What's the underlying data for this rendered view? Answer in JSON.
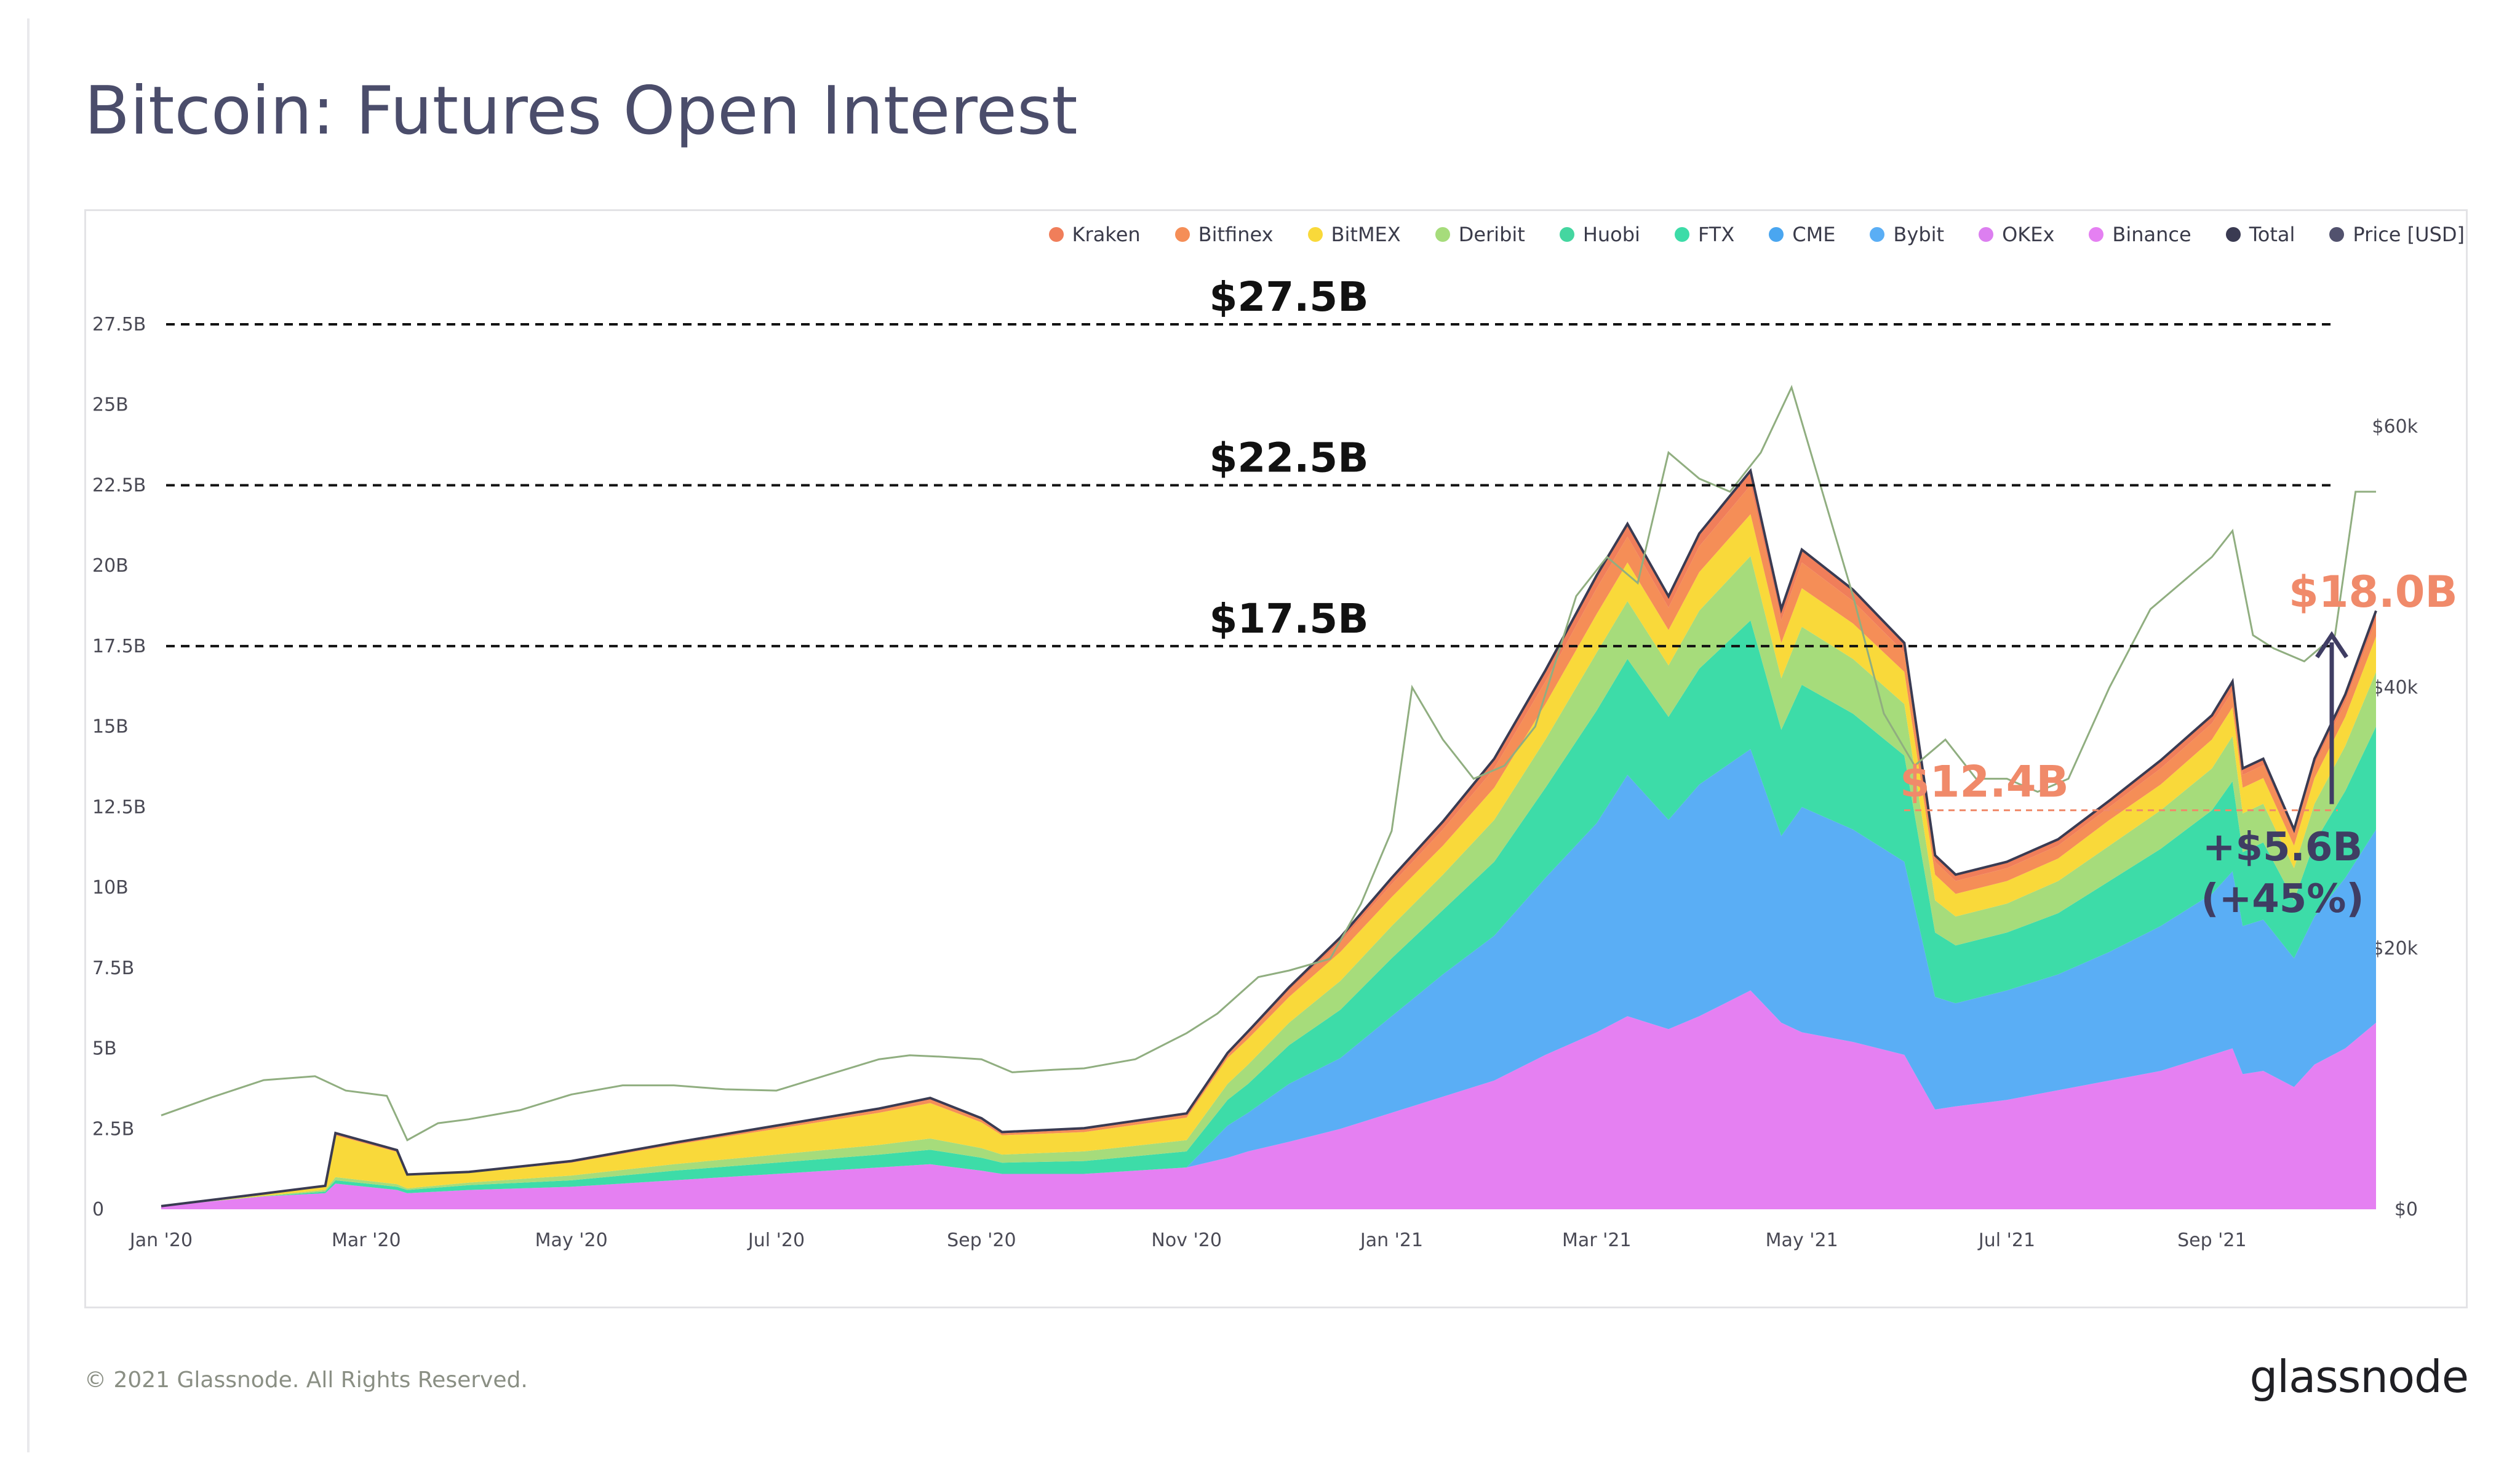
{
  "page": {
    "title": "Bitcoin: Futures Open Interest",
    "footer": "© 2021 Glassnode. All Rights Reserved.",
    "brand": "glassnode"
  },
  "legend": [
    {
      "label": "Kraken",
      "color": "#f07e5a"
    },
    {
      "label": "Bitfinex",
      "color": "#f58e57"
    },
    {
      "label": "BitMEX",
      "color": "#f9d93a"
    },
    {
      "label": "Deribit",
      "color": "#a6dc7b"
    },
    {
      "label": "Huobi",
      "color": "#44d6a0"
    },
    {
      "label": "FTX",
      "color": "#3ddca8"
    },
    {
      "label": "CME",
      "color": "#4aa6f0"
    },
    {
      "label": "Bybit",
      "color": "#5aaef5"
    },
    {
      "label": "OKEx",
      "color": "#dc7ff0"
    },
    {
      "label": "Binance",
      "color": "#e580f2"
    },
    {
      "label": "Total",
      "color": "#3a3b52"
    },
    {
      "label": "Price [USD]",
      "color": "#52526e"
    }
  ],
  "chart_data": {
    "type": "area",
    "stacked": true,
    "y_left": {
      "min": 0,
      "max": 27.5,
      "ticks": [
        {
          "v": 0,
          "label": "0"
        },
        {
          "v": 2.5,
          "label": "2.5B"
        },
        {
          "v": 5,
          "label": "5B"
        },
        {
          "v": 7.5,
          "label": "7.5B"
        },
        {
          "v": 10,
          "label": "10B"
        },
        {
          "v": 12.5,
          "label": "12.5B"
        },
        {
          "v": 15,
          "label": "15B"
        },
        {
          "v": 17.5,
          "label": "17.5B"
        },
        {
          "v": 20,
          "label": "20B"
        },
        {
          "v": 22.5,
          "label": "22.5B"
        },
        {
          "v": 25,
          "label": "25B"
        },
        {
          "v": 27.5,
          "label": "27.5B"
        }
      ]
    },
    "y_right": {
      "min": 0,
      "max": 65000,
      "ticks": [
        {
          "v": 0,
          "label": "$0"
        },
        {
          "v": 20000,
          "label": "$20k"
        },
        {
          "v": 40000,
          "label": "$40k"
        },
        {
          "v": 60000,
          "label": "$60k"
        }
      ]
    },
    "x_ticks": [
      {
        "m": 0,
        "label": "Jan '20"
      },
      {
        "m": 2,
        "label": "Mar '20"
      },
      {
        "m": 4,
        "label": "May '20"
      },
      {
        "m": 6,
        "label": "Jul '20"
      },
      {
        "m": 8,
        "label": "Sep '20"
      },
      {
        "m": 10,
        "label": "Nov '20"
      },
      {
        "m": 12,
        "label": "Jan '21"
      },
      {
        "m": 14,
        "label": "Mar '21"
      },
      {
        "m": 16,
        "label": "May '21"
      },
      {
        "m": 18,
        "label": "Jul '21"
      },
      {
        "m": 20,
        "label": "Sep '21"
      }
    ],
    "x_range_months": [
      0,
      21.6
    ],
    "stack_order_bottom_to_top": [
      "Binance",
      "CME",
      "FTX",
      "Deribit",
      "BitMEX",
      "Bitfinex",
      "Kraken"
    ],
    "series_colors": {
      "Binance": "#e580f2",
      "CME": "#5aaef5",
      "FTX": "#3ddca8",
      "Deribit": "#a6dc7b",
      "BitMEX": "#f9d93a",
      "Bitfinex": "#f58e57",
      "Kraken": "#f07e5a",
      "Total": "#3a3b52",
      "Price": "#90ae80"
    },
    "months": [
      0.0,
      1.0,
      1.6,
      1.7,
      2.3,
      2.4,
      3.0,
      4.0,
      5.0,
      6.0,
      7.0,
      7.5,
      8.0,
      8.2,
      9.0,
      10.0,
      10.4,
      10.6,
      11.0,
      11.5,
      12.0,
      12.5,
      13.0,
      13.5,
      14.0,
      14.3,
      14.7,
      15.0,
      15.5,
      15.8,
      16.0,
      16.5,
      17.0,
      17.3,
      17.5,
      18.0,
      18.5,
      19.0,
      19.5,
      20.0,
      20.2,
      20.3,
      20.5,
      20.8,
      21.0,
      21.3,
      21.6
    ],
    "series": [
      {
        "name": "Binance",
        "values": [
          0.1,
          0.4,
          0.5,
          0.8,
          0.6,
          0.5,
          0.6,
          0.7,
          0.9,
          1.1,
          1.3,
          1.4,
          1.2,
          1.1,
          1.1,
          1.3,
          1.6,
          1.8,
          2.1,
          2.5,
          3.0,
          3.5,
          4.0,
          4.8,
          5.5,
          6.0,
          5.6,
          6.0,
          6.8,
          5.8,
          5.5,
          5.2,
          4.8,
          3.1,
          3.2,
          3.4,
          3.7,
          4.0,
          4.3,
          4.8,
          5.0,
          4.2,
          4.3,
          3.8,
          4.5,
          5.0,
          5.8
        ]
      },
      {
        "name": "CME",
        "values": [
          0,
          0,
          0,
          0,
          0,
          0,
          0,
          0,
          0,
          0,
          0,
          0,
          0,
          0,
          0,
          0,
          1.0,
          1.2,
          1.8,
          2.2,
          3.0,
          3.8,
          4.5,
          5.5,
          6.5,
          7.5,
          6.5,
          7.2,
          7.5,
          5.8,
          7.0,
          6.6,
          6.0,
          3.5,
          3.2,
          3.4,
          3.6,
          4.0,
          4.5,
          5.0,
          5.5,
          4.6,
          4.7,
          4.0,
          4.6,
          5.3,
          6.0
        ]
      },
      {
        "name": "FTX",
        "values": [
          0,
          0,
          0.05,
          0.1,
          0.1,
          0.1,
          0.15,
          0.2,
          0.3,
          0.35,
          0.4,
          0.45,
          0.4,
          0.35,
          0.4,
          0.5,
          0.8,
          0.9,
          1.2,
          1.5,
          1.8,
          2.0,
          2.3,
          2.8,
          3.5,
          3.6,
          3.2,
          3.6,
          4.0,
          3.3,
          3.8,
          3.6,
          3.3,
          2.0,
          1.8,
          1.8,
          1.9,
          2.2,
          2.4,
          2.6,
          2.8,
          2.3,
          2.4,
          1.8,
          2.3,
          2.7,
          3.2
        ]
      },
      {
        "name": "Deribit",
        "values": [
          0,
          0.02,
          0.05,
          0.1,
          0.08,
          0.05,
          0.08,
          0.15,
          0.2,
          0.25,
          0.3,
          0.35,
          0.3,
          0.25,
          0.3,
          0.35,
          0.5,
          0.6,
          0.7,
          0.9,
          1.0,
          1.1,
          1.3,
          1.5,
          1.8,
          1.8,
          1.6,
          1.8,
          2.0,
          1.6,
          1.8,
          1.7,
          1.6,
          1.0,
          0.9,
          0.9,
          1.0,
          1.1,
          1.2,
          1.3,
          1.4,
          1.2,
          1.2,
          1.0,
          1.2,
          1.4,
          1.7
        ]
      },
      {
        "name": "BitMEX",
        "values": [
          0,
          0.05,
          0.1,
          1.3,
          1.0,
          0.4,
          0.3,
          0.4,
          0.6,
          0.8,
          1.0,
          1.1,
          0.8,
          0.6,
          0.6,
          0.7,
          0.8,
          0.8,
          0.8,
          0.9,
          0.9,
          0.9,
          1.0,
          1.1,
          1.2,
          1.2,
          1.1,
          1.2,
          1.3,
          1.1,
          1.2,
          1.1,
          1.0,
          0.8,
          0.7,
          0.7,
          0.7,
          0.8,
          0.8,
          0.9,
          0.9,
          0.8,
          0.8,
          0.7,
          0.8,
          0.9,
          1.1
        ]
      },
      {
        "name": "Bitfinex",
        "values": [
          0,
          0.01,
          0.02,
          0.05,
          0.04,
          0.02,
          0.02,
          0.03,
          0.04,
          0.06,
          0.08,
          0.1,
          0.08,
          0.06,
          0.07,
          0.08,
          0.1,
          0.15,
          0.2,
          0.3,
          0.4,
          0.5,
          0.6,
          0.7,
          0.8,
          0.8,
          0.7,
          0.8,
          0.9,
          0.7,
          0.8,
          0.7,
          0.6,
          0.4,
          0.4,
          0.4,
          0.4,
          0.4,
          0.5,
          0.5,
          0.5,
          0.4,
          0.4,
          0.35,
          0.4,
          0.45,
          0.5
        ]
      },
      {
        "name": "Kraken",
        "values": [
          0,
          0.01,
          0.01,
          0.02,
          0.02,
          0.01,
          0.01,
          0.02,
          0.03,
          0.04,
          0.05,
          0.06,
          0.05,
          0.04,
          0.05,
          0.05,
          0.06,
          0.08,
          0.1,
          0.15,
          0.2,
          0.25,
          0.3,
          0.35,
          0.4,
          0.4,
          0.35,
          0.4,
          0.45,
          0.35,
          0.4,
          0.35,
          0.3,
          0.2,
          0.2,
          0.2,
          0.2,
          0.2,
          0.25,
          0.25,
          0.3,
          0.2,
          0.2,
          0.15,
          0.2,
          0.25,
          0.3
        ]
      }
    ],
    "price": {
      "months": [
        0.0,
        0.5,
        1.0,
        1.5,
        1.8,
        2.2,
        2.4,
        2.7,
        3.0,
        3.5,
        4.0,
        4.5,
        5.0,
        5.5,
        6.0,
        6.5,
        7.0,
        7.3,
        7.6,
        8.0,
        8.3,
        8.7,
        9.0,
        9.5,
        10.0,
        10.3,
        10.7,
        11.0,
        11.4,
        11.7,
        12.0,
        12.2,
        12.5,
        12.8,
        13.1,
        13.4,
        13.8,
        14.1,
        14.4,
        14.7,
        15.0,
        15.3,
        15.6,
        15.9,
        16.2,
        16.5,
        16.8,
        17.1,
        17.4,
        17.7,
        18.0,
        18.3,
        18.6,
        19.0,
        19.4,
        19.7,
        20.0,
        20.2,
        20.4,
        20.6,
        20.9,
        21.2,
        21.4,
        21.6
      ],
      "values": [
        7200,
        8600,
        9900,
        10200,
        9100,
        8700,
        5300,
        6600,
        6900,
        7600,
        8800,
        9500,
        9500,
        9200,
        9100,
        10300,
        11500,
        11800,
        11700,
        11500,
        10500,
        10700,
        10800,
        11500,
        13500,
        15000,
        17800,
        18300,
        19200,
        23400,
        29000,
        40000,
        36000,
        33000,
        34000,
        37000,
        47000,
        50000,
        48000,
        58000,
        56000,
        55000,
        58000,
        63000,
        55000,
        47000,
        38000,
        34000,
        36000,
        33000,
        33000,
        32000,
        33000,
        40000,
        46000,
        48000,
        50000,
        52000,
        44000,
        43000,
        42000,
        44000,
        55000,
        55000
      ]
    },
    "total_display_months": [
      0.0,
      1.0,
      1.6,
      1.7,
      2.3,
      2.4,
      3.0,
      4.0,
      5.0,
      6.0,
      7.0,
      7.5,
      8.0,
      8.2,
      9.0,
      10.0,
      10.4,
      10.6,
      11.0,
      11.5,
      12.0,
      12.5,
      13.0,
      13.5,
      14.0,
      14.3,
      14.7,
      15.0,
      15.5,
      15.8,
      16.0,
      16.5,
      17.0,
      17.3,
      17.5,
      18.0,
      18.5,
      19.0,
      19.5,
      20.0,
      20.2,
      20.3,
      20.5,
      20.8,
      21.0,
      21.3,
      21.6
    ],
    "annotations": {
      "levels": [
        {
          "value": 27.5,
          "label": "$27.5B"
        },
        {
          "value": 22.5,
          "label": "$22.5B"
        },
        {
          "value": 17.5,
          "label": "$17.5B"
        }
      ],
      "low_label": "$12.4B",
      "low_value": 12.4,
      "high_label": "$18.0B",
      "high_value": 18.0,
      "change_label_1": "+$5.6B",
      "change_label_2": "(+45%)"
    }
  }
}
